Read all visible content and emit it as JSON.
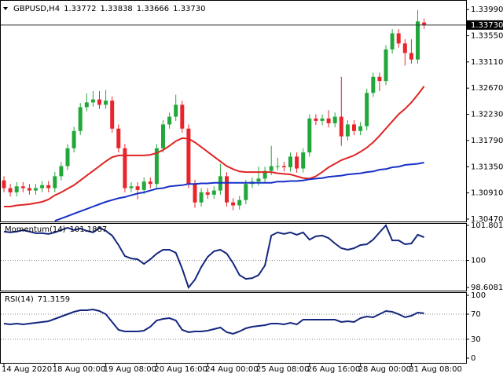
{
  "chart_data": [
    {
      "type": "candlestick",
      "title": "GBPUSD,H4",
      "last_bar_labels": [
        "1.33772",
        "1.33838",
        "1.33666",
        "1.33730"
      ],
      "current_price": {
        "value": 1.3373,
        "label": "1.33730"
      },
      "categories": [
        "14 Aug 2020",
        null,
        null,
        null,
        null,
        null,
        null,
        null,
        "18 Aug 00:00",
        null,
        null,
        null,
        null,
        null,
        null,
        null,
        "19 Aug 08:00",
        null,
        null,
        null,
        null,
        null,
        null,
        null,
        "20 Aug 16:00",
        null,
        null,
        null,
        null,
        null,
        null,
        null,
        "24 Aug 00:00",
        null,
        null,
        null,
        null,
        null,
        null,
        null,
        "25 Aug 08:00",
        null,
        null,
        null,
        null,
        null,
        null,
        null,
        "26 Aug 16:00",
        null,
        null,
        null,
        null,
        null,
        null,
        null,
        "28 Aug 00:00",
        null,
        null,
        null,
        null,
        null,
        null,
        null,
        "31 Aug 08:00",
        null,
        null
      ],
      "open": [
        1.3112,
        1.3099,
        1.3092,
        1.3102,
        1.3099,
        1.3095,
        1.3099,
        1.3104,
        1.3099,
        1.3119,
        1.3136,
        1.3166,
        1.3195,
        1.3235,
        1.3243,
        1.3248,
        1.3239,
        1.3246,
        1.3199,
        1.3166,
        1.3099,
        1.3102,
        1.3096,
        1.311,
        1.3106,
        1.3166,
        1.3206,
        1.3219,
        1.3239,
        1.3199,
        1.3106,
        1.3075,
        1.3092,
        1.3088,
        1.3095,
        1.3119,
        1.3075,
        1.307,
        1.3079,
        1.3106,
        1.311,
        1.3115,
        1.3128,
        1.3136,
        1.3136,
        1.3134,
        1.3152,
        1.3132,
        1.3159,
        1.3216,
        1.3212,
        1.3216,
        1.3208,
        1.3219,
        1.3186,
        1.3206,
        1.3195,
        1.3203,
        1.3259,
        1.3286,
        1.3279,
        1.3332,
        1.3359,
        1.3342,
        1.3326,
        1.3315,
        1.33772
      ],
      "high": [
        1.3119,
        1.3106,
        1.3109,
        1.3109,
        1.3106,
        1.3106,
        1.3111,
        1.3111,
        1.3126,
        1.3143,
        1.3173,
        1.3202,
        1.3242,
        1.3258,
        1.3262,
        1.3262,
        1.3264,
        1.3253,
        1.3206,
        1.3173,
        1.3109,
        1.3109,
        1.3117,
        1.3117,
        1.3173,
        1.3213,
        1.3226,
        1.3256,
        1.3246,
        1.3206,
        1.3113,
        1.3099,
        1.3099,
        1.3102,
        1.314,
        1.3126,
        1.3082,
        1.3086,
        1.3113,
        1.3117,
        1.3135,
        1.3135,
        1.317,
        1.315,
        1.3143,
        1.3159,
        1.3159,
        1.3166,
        1.3223,
        1.3223,
        1.3223,
        1.323,
        1.3226,
        1.3286,
        1.3213,
        1.3213,
        1.321,
        1.3266,
        1.3293,
        1.3293,
        1.3339,
        1.3366,
        1.3366,
        1.3349,
        1.3349,
        1.3398,
        1.33838
      ],
      "low": [
        1.3092,
        1.3085,
        1.3085,
        1.3092,
        1.3088,
        1.3088,
        1.3092,
        1.3092,
        1.3092,
        1.3112,
        1.3129,
        1.3159,
        1.3188,
        1.3228,
        1.3236,
        1.3232,
        1.3232,
        1.3192,
        1.3159,
        1.3092,
        1.3092,
        1.308,
        1.3089,
        1.3099,
        1.3099,
        1.3159,
        1.3199,
        1.3212,
        1.3192,
        1.3099,
        1.3066,
        1.3068,
        1.3081,
        1.3081,
        1.3088,
        1.3068,
        1.3062,
        1.3063,
        1.3072,
        1.3099,
        1.3103,
        1.3108,
        1.3121,
        1.3129,
        1.3127,
        1.3127,
        1.3125,
        1.3125,
        1.3152,
        1.3205,
        1.3205,
        1.3201,
        1.3201,
        1.317,
        1.3179,
        1.3188,
        1.3188,
        1.3196,
        1.3252,
        1.3262,
        1.3272,
        1.3325,
        1.3335,
        1.3305,
        1.3308,
        1.3308,
        1.33666
      ],
      "close": [
        1.3099,
        1.3092,
        1.3102,
        1.3099,
        1.3095,
        1.3099,
        1.3104,
        1.3099,
        1.3119,
        1.3136,
        1.3166,
        1.3195,
        1.3235,
        1.3243,
        1.3248,
        1.3239,
        1.3246,
        1.3199,
        1.3166,
        1.3099,
        1.3102,
        1.3096,
        1.311,
        1.3106,
        1.3166,
        1.3206,
        1.3219,
        1.3239,
        1.3199,
        1.3106,
        1.3075,
        1.3092,
        1.3088,
        1.3095,
        1.3119,
        1.3075,
        1.307,
        1.3079,
        1.3106,
        1.311,
        1.3115,
        1.3128,
        1.3136,
        1.3136,
        1.3134,
        1.3152,
        1.3132,
        1.3159,
        1.3216,
        1.3212,
        1.3216,
        1.3208,
        1.3219,
        1.3186,
        1.3206,
        1.3195,
        1.3203,
        1.3259,
        1.3286,
        1.3279,
        1.3332,
        1.3359,
        1.3342,
        1.3326,
        1.3315,
        1.3379,
        1.3373
      ],
      "up_color": "#22a83a",
      "down_color": "#e8252b",
      "series": [
        {
          "color": "#e02424",
          "values": [
            1.3068,
            1.3068,
            1.307,
            1.3071,
            1.3072,
            1.3074,
            1.3076,
            1.308,
            1.3087,
            1.3092,
            1.3098,
            1.3104,
            1.3112,
            1.312,
            1.3128,
            1.3136,
            1.3144,
            1.3151,
            1.3154,
            1.3154,
            1.3154,
            1.3154,
            1.3154,
            1.3155,
            1.3158,
            1.3163,
            1.317,
            1.3178,
            1.3183,
            1.3182,
            1.3176,
            1.3168,
            1.316,
            1.3152,
            1.3144,
            1.3136,
            1.3131,
            1.3127,
            1.3126,
            1.3126,
            1.3126,
            1.3126,
            1.3126,
            1.3124,
            1.3123,
            1.3122,
            1.3119,
            1.3116,
            1.3115,
            1.3119,
            1.3126,
            1.3134,
            1.314,
            1.3146,
            1.315,
            1.3154,
            1.316,
            1.3167,
            1.3176,
            1.3187,
            1.3199,
            1.3211,
            1.3223,
            1.3232,
            1.3243,
            1.3256,
            1.327
          ]
        },
        {
          "color": "#1730c8",
          "values": [
            null,
            null,
            null,
            null,
            null,
            null,
            null,
            null,
            1.3044,
            1.3048,
            1.3052,
            1.3056,
            1.306,
            1.3064,
            1.3068,
            1.3072,
            1.3076,
            1.3079,
            1.3082,
            1.3084,
            1.3087,
            1.309,
            1.3092,
            1.3095,
            1.3098,
            1.3099,
            1.3102,
            1.3103,
            1.3104,
            1.3106,
            1.3106,
            1.3107,
            1.3107,
            1.3108,
            1.3108,
            1.3108,
            1.3108,
            1.3108,
            1.3108,
            1.3108,
            1.3108,
            1.3108,
            1.3108,
            1.311,
            1.311,
            1.3111,
            1.3111,
            1.3112,
            1.3114,
            1.3115,
            1.3116,
            1.3118,
            1.3119,
            1.312,
            1.3122,
            1.3123,
            1.3124,
            1.3126,
            1.3127,
            1.313,
            1.3131,
            1.3134,
            1.3135,
            1.3138,
            1.3139,
            1.314,
            1.3142
          ]
        }
      ],
      "ylim": [
        1.3043,
        1.3415
      ],
      "yticks": [
        {
          "value": 1.3399,
          "label": "1.33990"
        },
        {
          "value": 1.3355,
          "label": "1.33550"
        },
        {
          "value": 1.3311,
          "label": "1.33110"
        },
        {
          "value": 1.3267,
          "label": "1.32670"
        },
        {
          "value": 1.3223,
          "label": "1.32230"
        },
        {
          "value": 1.3179,
          "label": "1.31790"
        },
        {
          "value": 1.3135,
          "label": "1.31350"
        },
        {
          "value": 1.3091,
          "label": "1.30910"
        },
        {
          "value": 1.3047,
          "label": "1.30470"
        }
      ]
    },
    {
      "type": "line",
      "title": "Momentum(14)",
      "color": "#14267e",
      "grid": "dotted",
      "values": [
        101.48,
        101.44,
        101.48,
        101.56,
        101.48,
        101.4,
        101.4,
        101.36,
        101.44,
        101.56,
        101.68,
        101.56,
        101.64,
        101.52,
        101.44,
        101.68,
        101.52,
        101.28,
        100.79,
        100.22,
        100.1,
        100.06,
        99.82,
        100.06,
        100.35,
        100.55,
        100.55,
        100.39,
        99.58,
        98.61,
        99.01,
        99.66,
        100.18,
        100.47,
        100.55,
        100.35,
        99.86,
        99.25,
        99.05,
        99.09,
        99.25,
        99.74,
        101.28,
        101.44,
        101.36,
        101.44,
        101.32,
        101.44,
        101.07,
        101.24,
        101.28,
        101.15,
        100.87,
        100.63,
        100.55,
        100.63,
        100.79,
        100.83,
        101.07,
        101.44,
        101.8,
        101.03,
        101.03,
        100.83,
        100.87,
        101.32,
        101.1887
      ],
      "ylim": [
        98.45,
        101.92
      ],
      "yticks": [
        101.8013,
        100,
        98.6081
      ]
    },
    {
      "type": "line",
      "title": "RSI(14)",
      "color": "#14267e",
      "grid": "dotted",
      "values": [
        55,
        53.8,
        55,
        53.8,
        55,
        56.3,
        57.5,
        58.8,
        62.5,
        66.3,
        70,
        73.8,
        76.3,
        76.3,
        77.5,
        75,
        70,
        57.5,
        45,
        42.5,
        42.5,
        42.5,
        43.8,
        50,
        60,
        62.5,
        63.8,
        60,
        45,
        41.3,
        42.5,
        42.5,
        43.8,
        46.3,
        48.8,
        41.3,
        38.8,
        42.5,
        47.5,
        50,
        51.3,
        52.5,
        55,
        55,
        53.8,
        56.3,
        53.8,
        61.3,
        61.3,
        61.3,
        61.3,
        61.3,
        61.3,
        57.5,
        58.8,
        57.5,
        63.8,
        66.3,
        65,
        70,
        75,
        73.8,
        70,
        65,
        67.5,
        72.5,
        71.3159
      ],
      "ylim": [
        -7.5,
        105
      ],
      "yticks": [
        100,
        70,
        30,
        0
      ]
    }
  ]
}
